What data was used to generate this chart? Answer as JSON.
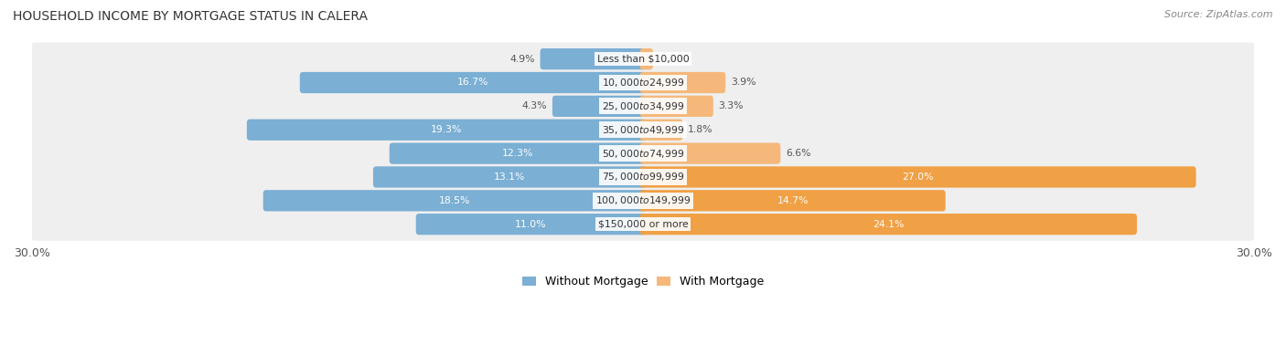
{
  "title": "HOUSEHOLD INCOME BY MORTGAGE STATUS IN CALERA",
  "source": "Source: ZipAtlas.com",
  "categories": [
    "Less than $10,000",
    "$10,000 to $24,999",
    "$25,000 to $34,999",
    "$35,000 to $49,999",
    "$50,000 to $74,999",
    "$75,000 to $99,999",
    "$100,000 to $149,999",
    "$150,000 or more"
  ],
  "without_mortgage": [
    4.9,
    16.7,
    4.3,
    19.3,
    12.3,
    13.1,
    18.5,
    11.0
  ],
  "with_mortgage": [
    0.34,
    3.9,
    3.3,
    1.8,
    6.6,
    27.0,
    14.7,
    24.1
  ],
  "xlim": 30.0,
  "bar_color_left": "#7bafd4",
  "bar_color_right": "#f5b87a",
  "bar_color_right_large": "#f0a045",
  "bg_row_color": "#efefef",
  "label_color_inside": "#ffffff",
  "label_color_outside": "#555555",
  "legend_left": "Without Mortgage",
  "legend_right": "With Mortgage"
}
